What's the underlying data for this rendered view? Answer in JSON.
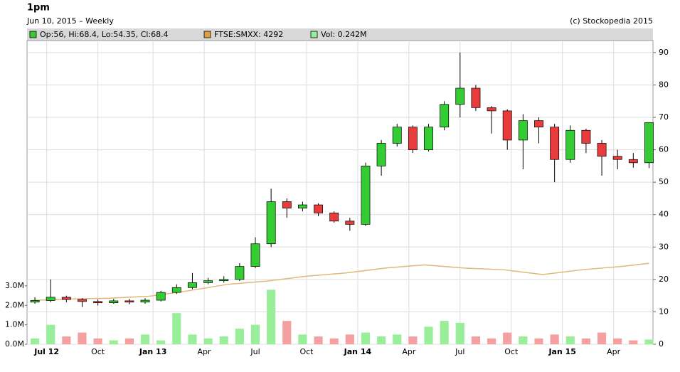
{
  "chart_data": {
    "type": "candlestick",
    "title": "1pm",
    "subtitle": "Jun 10, 2015 – Weekly",
    "credit": "(c) Stockopedia 2015",
    "legend": [
      "Op:56, Hi:68.4, Lo:54.35, Cl:68.4",
      "FTSE:SMXX: 4292",
      "Vol: 0.242M"
    ],
    "legend_colors": [
      "#33cc33",
      "#e0a040",
      "#99ee99"
    ],
    "up_color": "#33cc33",
    "down_color": "#e83c3c",
    "up_vol_color": "#99ee99",
    "down_vol_color": "#f4a0a0",
    "index_color": "#e0b878",
    "x": [
      1,
      5,
      9,
      13,
      17,
      21,
      25,
      29,
      33,
      37,
      41,
      45,
      49,
      53,
      57,
      61,
      65,
      69,
      73,
      77,
      81,
      85,
      89,
      93,
      97,
      101,
      105,
      109,
      113,
      117,
      121,
      125,
      129,
      133,
      137,
      141,
      145,
      149,
      153,
      157
    ],
    "open": [
      13.0,
      13.5,
      14.5,
      13.8,
      13.2,
      12.8,
      13.4,
      13.0,
      13.6,
      16.0,
      17.5,
      19.0,
      19.6,
      20.0,
      24.0,
      31.0,
      44.0,
      42.0,
      43.0,
      40.5,
      38.0,
      37.0,
      55.0,
      62.0,
      67.0,
      60.0,
      67.0,
      74.0,
      79.0,
      73.0,
      72.0,
      63.0,
      69.0,
      67.0,
      57.0,
      66.0,
      62.0,
      58.0,
      57.0,
      56
    ],
    "high": [
      14.5,
      20.0,
      15.0,
      14.2,
      13.8,
      14.0,
      14.0,
      14.2,
      16.5,
      18.5,
      22.0,
      20.5,
      21.0,
      25.0,
      33.0,
      48.0,
      45.0,
      44.0,
      43.5,
      41.0,
      39.0,
      56.0,
      63.0,
      68.0,
      67.5,
      68.0,
      75.0,
      90.0,
      80.0,
      73.5,
      72.5,
      71.0,
      70.0,
      68.0,
      67.5,
      66.5,
      63.0,
      60.0,
      59.0,
      68.4
    ],
    "low": [
      12.5,
      13.0,
      13.0,
      11.5,
      12.0,
      12.5,
      12.3,
      12.5,
      13.2,
      15.5,
      17.0,
      18.5,
      19.0,
      19.5,
      23.5,
      30.0,
      39.0,
      41.0,
      39.5,
      37.5,
      35.0,
      36.5,
      52.0,
      61.0,
      59.0,
      59.5,
      66.0,
      70.0,
      72.0,
      65.0,
      60.0,
      54.0,
      62.0,
      50.0,
      56.0,
      59.0,
      52.0,
      54.0,
      54.5,
      54.35
    ],
    "close": [
      13.5,
      14.5,
      13.8,
      13.2,
      12.8,
      13.4,
      13.0,
      13.6,
      16.0,
      17.5,
      19.0,
      19.6,
      20.0,
      24.0,
      31.0,
      44.0,
      42.0,
      43.0,
      40.5,
      38.0,
      37.0,
      55.0,
      62.0,
      67.0,
      60.0,
      67.0,
      74.0,
      79.0,
      73.0,
      72.0,
      63.0,
      69.0,
      67.0,
      57.0,
      66.0,
      62.0,
      58.0,
      57.0,
      56.0,
      68.4
    ],
    "volume": [
      0.3,
      1.0,
      0.4,
      0.6,
      0.3,
      0.2,
      0.3,
      0.5,
      0.2,
      1.6,
      0.5,
      0.3,
      0.4,
      0.8,
      1.0,
      2.8,
      1.2,
      0.5,
      0.4,
      0.3,
      0.5,
      0.6,
      0.4,
      0.5,
      0.4,
      0.9,
      1.2,
      1.1,
      0.4,
      0.3,
      0.6,
      0.4,
      0.3,
      0.5,
      0.4,
      0.3,
      0.6,
      0.3,
      0.2,
      0.242
    ],
    "index_x": [
      0,
      10,
      20,
      30,
      40,
      50,
      60,
      70,
      80,
      90,
      100,
      110,
      120,
      130,
      140,
      150,
      157
    ],
    "index_values": [
      13.5,
      14.0,
      14.2,
      14.8,
      16.5,
      18.5,
      19.5,
      21.0,
      22.0,
      23.5,
      24.5,
      23.5,
      23.0,
      21.5,
      23.0,
      24.0,
      25.0
    ],
    "xlim": [
      -1,
      158
    ],
    "xticks": [
      {
        "value": 4,
        "label": "Jul 12"
      },
      {
        "value": 17,
        "label": "Oct"
      },
      {
        "value": 31,
        "label": "Jan 13"
      },
      {
        "value": 44,
        "label": "Apr"
      },
      {
        "value": 57,
        "label": "Jul"
      },
      {
        "value": 70,
        "label": "Oct"
      },
      {
        "value": 83,
        "label": "Jan 14"
      },
      {
        "value": 96,
        "label": "Apr"
      },
      {
        "value": 109,
        "label": "Jul"
      },
      {
        "value": 122,
        "label": "Oct"
      },
      {
        "value": 135,
        "label": "Jan 15"
      },
      {
        "value": 148,
        "label": "Apr"
      }
    ],
    "ylim": [
      0,
      93.7
    ],
    "yticks": [
      0,
      10,
      20,
      30,
      40,
      50,
      60,
      70,
      80,
      90
    ],
    "y2lim": [
      0,
      15.6
    ],
    "y2ticks": [
      {
        "value": 0,
        "label": "0.0M"
      },
      {
        "value": 1,
        "label": "1.0M"
      },
      {
        "value": 2,
        "label": "2.0M"
      },
      {
        "value": 3,
        "label": "3.0M"
      }
    ],
    "grid": true
  }
}
